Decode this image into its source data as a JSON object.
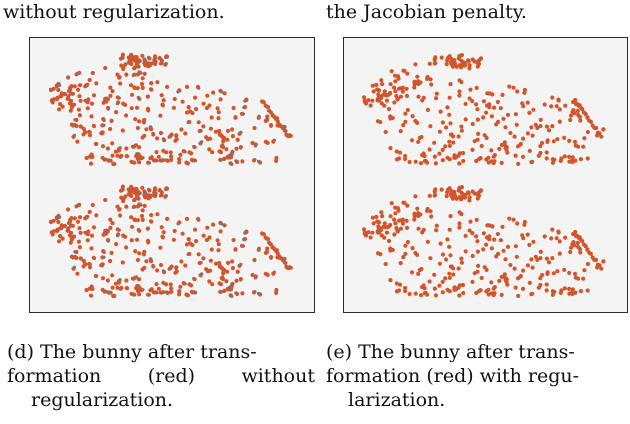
{
  "top_text": {
    "left": "without regularization.",
    "right": "the Jacobian penalty."
  },
  "captions": {
    "d": {
      "line1": "(d) The bunny after trans-",
      "line2_words": [
        "formation",
        "(red)",
        "without"
      ],
      "line3": "regularization."
    },
    "e": {
      "line1": "(e) The bunny after trans-",
      "line2": "formation (red) with regu-",
      "line3": "larization."
    }
  },
  "colors": {
    "panel_bg": "#f4f4f4",
    "transformed_points": "#d2552b",
    "original_points": "#4a7fb0"
  },
  "figures": [
    {
      "id": "d",
      "description_word": "without-regularization",
      "blue_visible": true
    },
    {
      "id": "e",
      "description_word": "with-regularization",
      "blue_visible": false
    }
  ]
}
